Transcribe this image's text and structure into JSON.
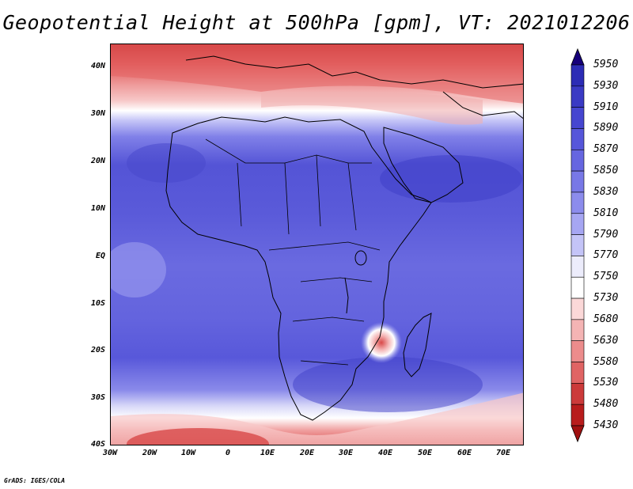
{
  "title": "Geopotential Height at 500hPa [gpm], VT: 2021012206",
  "footer": "GrADS: IGES/COLA",
  "y_axis_labels": [
    "40N",
    "30N",
    "20N",
    "10N",
    "EQ",
    "10S",
    "20S",
    "30S",
    "40S"
  ],
  "x_axis_labels": [
    "30W",
    "20W",
    "10W",
    "0",
    "10E",
    "20E",
    "30E",
    "40E",
    "50E",
    "60E",
    "70E"
  ],
  "colorbar": {
    "levels": [
      "5950",
      "5930",
      "5910",
      "5890",
      "5870",
      "5850",
      "5830",
      "5810",
      "5790",
      "5770",
      "5750",
      "5730",
      "5680",
      "5630",
      "5580",
      "5530",
      "5480",
      "5430"
    ],
    "colors": [
      "#16007a",
      "#2c2cb5",
      "#3a3ac4",
      "#4646d0",
      "#5656da",
      "#6666e0",
      "#7878e6",
      "#8c8cec",
      "#a6a6f2",
      "#c4c4f7",
      "#ececfb",
      "#ffffff",
      "#fbd8d8",
      "#f4b4b4",
      "#ec8c8c",
      "#e06464",
      "#cc3a3a",
      "#b81c1c",
      "#a01010"
    ]
  },
  "map": {
    "lon_range": [
      -30,
      75
    ],
    "lat_range": [
      -40,
      45
    ],
    "feature": "cyclone-low"
  }
}
